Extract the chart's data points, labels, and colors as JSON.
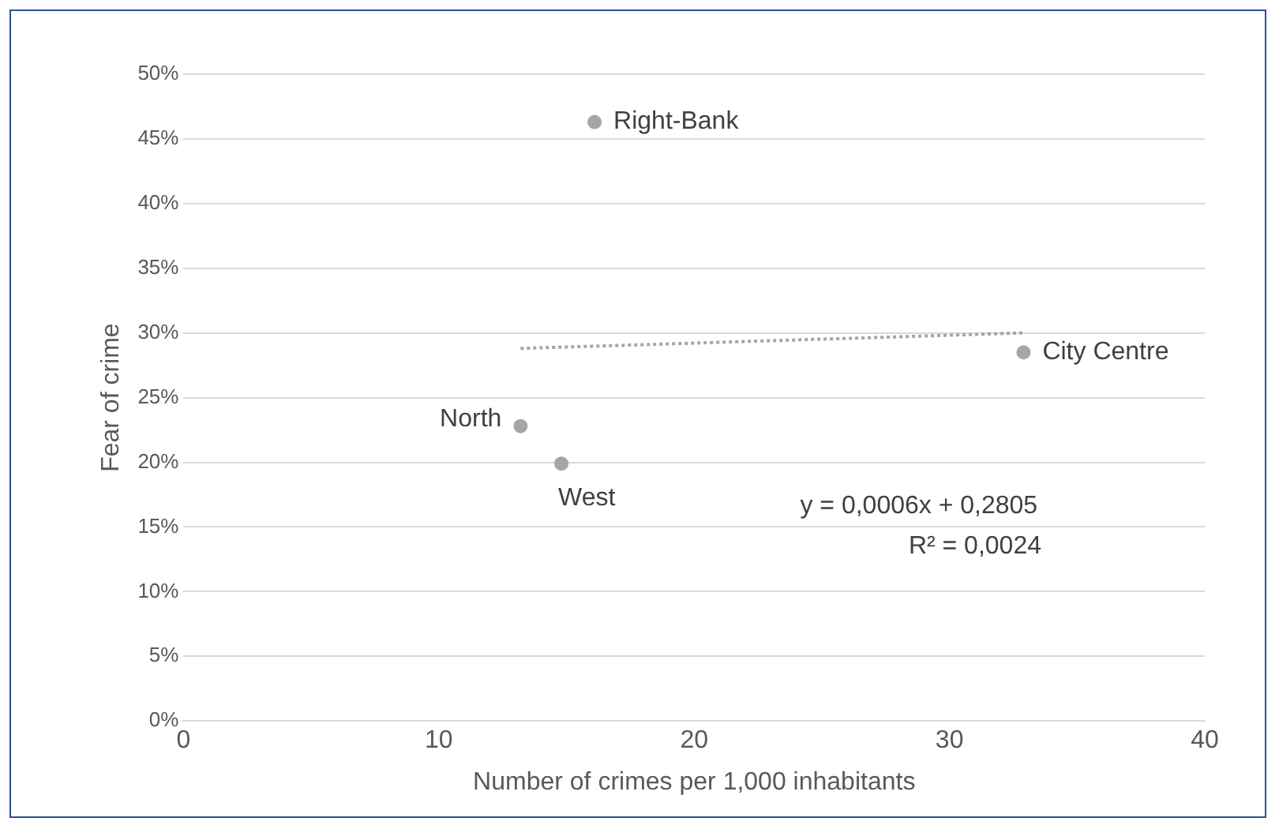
{
  "chart_data": {
    "type": "scatter",
    "xlabel": "Number of crimes per 1,000 inhabitants",
    "ylabel": "Fear of crime",
    "xlim": [
      0,
      40
    ],
    "xticks": [
      0,
      10,
      20,
      30,
      40
    ],
    "ylim": [
      0,
      50
    ],
    "yticks": [
      {
        "value": 0,
        "label": "0%"
      },
      {
        "value": 5,
        "label": "5%"
      },
      {
        "value": 10,
        "label": "10%"
      },
      {
        "value": 15,
        "label": "15%"
      },
      {
        "value": 20,
        "label": "20%"
      },
      {
        "value": 25,
        "label": "25%"
      },
      {
        "value": 30,
        "label": "30%"
      },
      {
        "value": 35,
        "label": "35%"
      },
      {
        "value": 40,
        "label": "40%"
      },
      {
        "value": 45,
        "label": "45%"
      },
      {
        "value": 50,
        "label": "50%"
      }
    ],
    "grid": "y",
    "marker": "circle",
    "legend": false,
    "series": [
      {
        "type": "scatter",
        "color": "#a5a5a5",
        "x": [
          16.1,
          32.9,
          13.2,
          14.8
        ],
        "values": [
          46.3,
          28.5,
          22.8,
          19.9
        ]
      },
      {
        "type": "line",
        "color": "#a5a5a5",
        "line_style": "dotted",
        "marker": "none",
        "x": [
          13.2,
          32.9
        ],
        "values": [
          28.8,
          30.0
        ]
      }
    ],
    "annotations": [
      {
        "text": "Right-Bank",
        "x": 16.1,
        "y": 46.3
      },
      {
        "text": "City Centre",
        "x": 32.9,
        "y": 28.5
      },
      {
        "text": "North",
        "x": 13.2,
        "y": 22.8
      },
      {
        "text": "West",
        "x": 14.8,
        "y": 19.9
      },
      "y = 0,0006x + 0,2805",
      "R² = 0,0024"
    ]
  }
}
